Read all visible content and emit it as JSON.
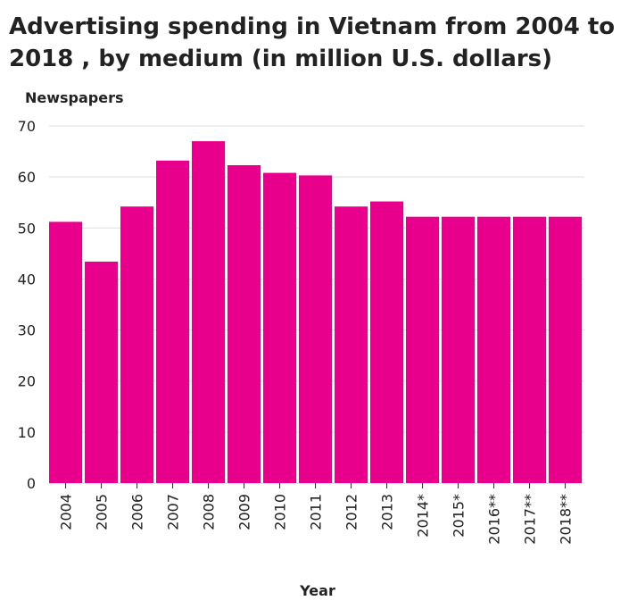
{
  "chart_data": {
    "type": "bar",
    "title": "Advertising spending in Vietnam from 2004 to 2018 , by medium (in million U.S. dollars)",
    "ylabel": "Newspapers",
    "xlabel": "Year",
    "categories": [
      "2004",
      "2005",
      "2006",
      "2007",
      "2008",
      "2009",
      "2010",
      "2011",
      "2012",
      "2013",
      "2014*",
      "2015*",
      "2016**",
      "2017**",
      "2018**"
    ],
    "values": [
      51.2,
      43.4,
      54.2,
      63.2,
      67,
      62.3,
      60.8,
      60.3,
      54.2,
      55.2,
      52.2,
      52.2,
      52.2,
      52.2,
      52.2
    ],
    "ylim": [
      0,
      70
    ],
    "yticks": [
      0,
      10,
      20,
      30,
      40,
      50,
      60,
      70
    ],
    "grid": true,
    "bar_color": "#e8008c",
    "grid_color": "#dddddd"
  }
}
